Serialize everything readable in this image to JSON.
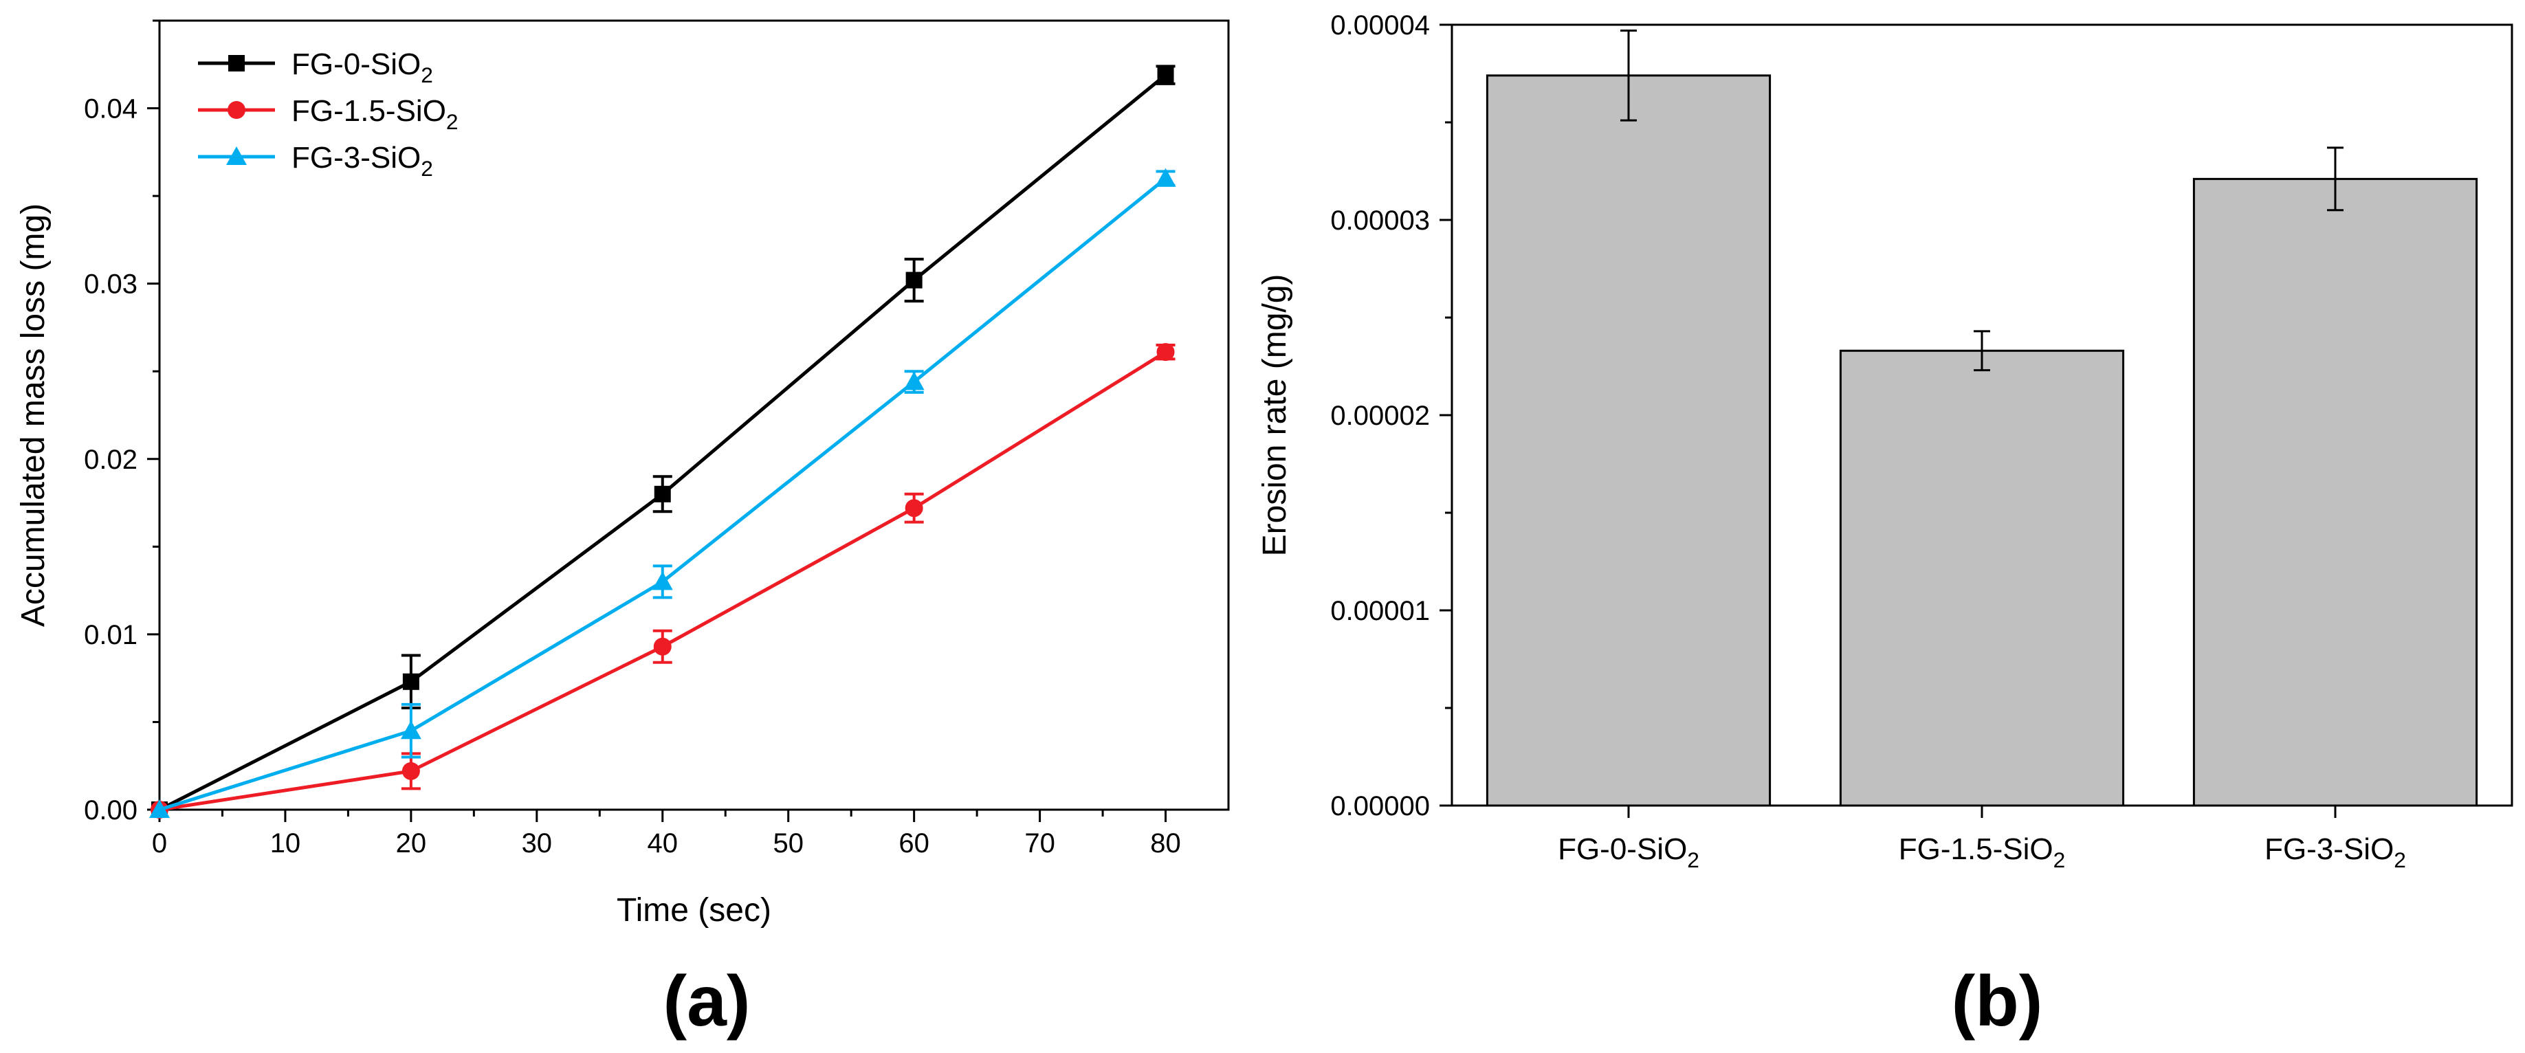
{
  "chart_data": [
    {
      "type": "line",
      "panel_label": "(a)",
      "title": "",
      "xlabel": "Time (sec)",
      "ylabel": "Accumulated mass loss (mg)",
      "xlim": [
        0,
        85
      ],
      "ylim": [
        0,
        0.045
      ],
      "xticks": [
        0,
        10,
        20,
        30,
        40,
        50,
        60,
        70,
        80
      ],
      "xtick_labels": [
        "0",
        "10",
        "20",
        "30",
        "40",
        "50",
        "60",
        "70",
        "80"
      ],
      "yticks": [
        0,
        0.01,
        0.02,
        0.03,
        0.04
      ],
      "ytick_labels": [
        "0.00",
        "0.01",
        "0.02",
        "0.03",
        "0.04"
      ],
      "legend_position": "top-left",
      "x": [
        0,
        20,
        40,
        60,
        80
      ],
      "series": [
        {
          "name_base": "FG-0-SiO",
          "name_sub": "2",
          "color": "#000000",
          "marker": "square",
          "values": [
            0.0,
            0.0073,
            0.018,
            0.0302,
            0.0419
          ],
          "errors": [
            0.0,
            0.0015,
            0.001,
            0.0012,
            0.0005
          ]
        },
        {
          "name_base": "FG-1.5-SiO",
          "name_sub": "2",
          "color": "#ee1c25",
          "marker": "circle",
          "values": [
            0.0,
            0.0022,
            0.0093,
            0.0172,
            0.0261
          ],
          "errors": [
            0.0,
            0.001,
            0.0009,
            0.0008,
            0.0004
          ]
        },
        {
          "name_base": "FG-3-SiO",
          "name_sub": "2",
          "color": "#00aeef",
          "marker": "triangle",
          "values": [
            0.0,
            0.0045,
            0.013,
            0.0244,
            0.036
          ],
          "errors": [
            0.0,
            0.0015,
            0.0009,
            0.0006,
            0.0004
          ]
        }
      ]
    },
    {
      "type": "bar",
      "panel_label": "(b)",
      "title": "",
      "xlabel": "",
      "ylabel": "Erosion rate (mg/g)",
      "ylim": [
        0,
        4e-05
      ],
      "yticks": [
        0,
        1e-05,
        2e-05,
        3e-05,
        4e-05
      ],
      "ytick_labels": [
        "0.00000",
        "0.00001",
        "0.00002",
        "0.00003",
        "0.00004"
      ],
      "categories": [
        {
          "base": "FG-0-SiO",
          "sub": "2"
        },
        {
          "base": "FG-1.5-SiO",
          "sub": "2"
        },
        {
          "base": "FG-3-SiO",
          "sub": "2"
        }
      ],
      "values": [
        3.74e-05,
        2.33e-05,
        3.21e-05
      ],
      "errors": [
        2.3e-06,
        1e-06,
        1.6e-06
      ],
      "bar_color": "#c0c0c0"
    }
  ]
}
